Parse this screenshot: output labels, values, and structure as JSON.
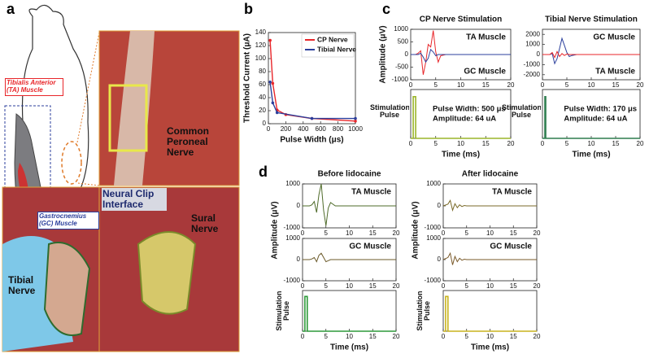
{
  "panel_labels": [
    "a",
    "b",
    "c",
    "d"
  ],
  "photo_labels": {
    "ta_muscle": "Tibialis Anterior (TA) Muscle",
    "gc_muscle": "Gastrocnemius (GC) Muscle",
    "common_peroneal": "Common Peroneal Nerve",
    "neural_clip": "Neural Clip Interface",
    "sural": "Sural Nerve",
    "tibial": "Tibial Nerve"
  },
  "chart_data": [
    {
      "type": "line",
      "xlabel": "Pulse Width (μs)",
      "ylabel": "Threshold Current (μA)",
      "xlim": [
        0,
        1000
      ],
      "xticks": [
        0,
        200,
        400,
        600,
        800,
        1000
      ],
      "ylim": [
        0,
        140
      ],
      "yticks": [
        0,
        20,
        40,
        60,
        80,
        100,
        120,
        140
      ],
      "legend": "upper right",
      "series": [
        {
          "name": "CP Nerve",
          "color": "#e8262a",
          "x": [
            20,
            50,
            100,
            200,
            500,
            1000
          ],
          "values": [
            128,
            62,
            21,
            14,
            8,
            4
          ]
        },
        {
          "name": "Tibial Nerve",
          "color": "#2b3f9c",
          "x": [
            20,
            50,
            100,
            500,
            1000
          ],
          "values": [
            64,
            32,
            17,
            8,
            8
          ]
        }
      ]
    },
    {
      "type": "line",
      "title": "CP Nerve Stimulation",
      "ylabel": "Amplitude (μV)",
      "xlim": [
        0,
        20
      ],
      "xticks": [
        0,
        5,
        10,
        15,
        20
      ],
      "ylim": [
        -1000,
        1000
      ],
      "yticks": [
        -1000,
        -500,
        0,
        500,
        1000
      ],
      "x": [
        0,
        1,
        1.5,
        2,
        2.5,
        3,
        3.5,
        4,
        4.5,
        5,
        5.5,
        6,
        7,
        8,
        10,
        12,
        15,
        20
      ],
      "series": [
        {
          "name": "TA Muscle",
          "color": "#e8262a",
          "values": [
            0,
            0,
            50,
            150,
            -800,
            -300,
            400,
            300,
            950,
            100,
            -300,
            -50,
            0,
            0,
            0,
            0,
            0,
            0
          ]
        },
        {
          "name": "GC Muscle",
          "color": "#2b3f9c",
          "values": [
            0,
            0,
            0,
            50,
            -100,
            -300,
            -150,
            200,
            100,
            -50,
            0,
            0,
            0,
            0,
            0,
            0,
            0,
            0
          ]
        }
      ]
    },
    {
      "type": "pulse",
      "ylabel": "Stimulation Pulse",
      "xlabel": "Time (ms)",
      "xlim": [
        0,
        20
      ],
      "xticks": [
        0,
        5,
        10,
        15,
        20
      ],
      "ylim": [
        0,
        75
      ],
      "color": "#9bb52a",
      "x": [
        0,
        0.5,
        0.5,
        1,
        1,
        20
      ],
      "values": [
        0,
        0,
        64,
        64,
        0,
        0
      ],
      "annotations": [
        {
          "text": "Pulse Width: 500 μs",
          "color": "#e8262a"
        },
        {
          "text": "Amplitude: 64 uA",
          "color": "#e8262a"
        }
      ]
    },
    {
      "type": "line",
      "title": "Tibial Nerve Stimulation",
      "xlim": [
        0,
        20
      ],
      "xticks": [
        0,
        5,
        10,
        15,
        20
      ],
      "ylim": [
        -2500,
        2500
      ],
      "yticks": [
        -2000,
        -1000,
        0,
        1000,
        2000
      ],
      "x": [
        0,
        1,
        1.5,
        2,
        2.5,
        3,
        3.5,
        4,
        4.5,
        5,
        5.5,
        6,
        7,
        8,
        10,
        12,
        15,
        20
      ],
      "series": [
        {
          "name": "GC Muscle",
          "color": "#2b3f9c",
          "values": [
            0,
            0,
            0,
            100,
            -900,
            -400,
            600,
            1600,
            900,
            200,
            -200,
            -100,
            0,
            0,
            0,
            0,
            0,
            0
          ]
        },
        {
          "name": "TA Muscle",
          "color": "#e8262a",
          "values": [
            0,
            0,
            0,
            200,
            -300,
            300,
            -200,
            100,
            -100,
            50,
            0,
            0,
            0,
            0,
            0,
            0,
            0,
            0
          ]
        }
      ]
    },
    {
      "type": "pulse",
      "ylabel": "Stimulation Pulse",
      "xlabel": "Time (ms)",
      "xlim": [
        0,
        20
      ],
      "xticks": [
        0,
        5,
        10,
        15,
        20
      ],
      "ylim": [
        0,
        75
      ],
      "color": "#2e7d4f",
      "x": [
        0,
        0.5,
        0.5,
        0.67,
        0.67,
        20
      ],
      "values": [
        0,
        0,
        64,
        64,
        0,
        0
      ],
      "annotations": [
        {
          "text": "Pulse Width: 170 μs",
          "color": "#2b3f9c"
        },
        {
          "text": "Amplitude: 64 uA",
          "color": "#2b3f9c"
        }
      ]
    },
    {
      "type": "line",
      "title": "Before lidocaine",
      "xlim": [
        0,
        20
      ],
      "xticks": [
        0,
        5,
        10,
        15,
        20
      ],
      "ylim": [
        -1000,
        1000
      ],
      "yticks": [
        -1000,
        0,
        1000
      ],
      "x": [
        0,
        1,
        1.5,
        2,
        2.5,
        3,
        3.5,
        4,
        4.5,
        5,
        5.5,
        6,
        7,
        8,
        10,
        12,
        15,
        20
      ],
      "series": [
        {
          "name": "TA Muscle",
          "color": "#4f6b2a",
          "label_color": "#e8262a",
          "values": [
            0,
            0,
            0,
            50,
            200,
            -300,
            500,
            1000,
            -200,
            -900,
            -100,
            150,
            0,
            0,
            0,
            0,
            0,
            0
          ]
        }
      ]
    },
    {
      "type": "line",
      "ylabel": "Amplitude (μV)",
      "xlim": [
        0,
        20
      ],
      "xticks": [
        0,
        5,
        10,
        15,
        20
      ],
      "ylim": [
        -1000,
        1000
      ],
      "yticks": [
        -1000,
        0,
        1000
      ],
      "x": [
        0,
        1,
        1.5,
        2,
        2.5,
        3,
        3.5,
        4,
        4.5,
        5,
        5.5,
        6,
        7,
        8,
        10,
        12,
        15,
        20
      ],
      "series": [
        {
          "name": "GC Muscle",
          "color": "#6b5a2a",
          "label_color": "#2b3f9c",
          "values": [
            0,
            0,
            0,
            30,
            100,
            -100,
            200,
            300,
            100,
            -100,
            -50,
            0,
            0,
            0,
            0,
            0,
            0,
            0
          ]
        }
      ]
    },
    {
      "type": "pulse",
      "ylabel": "Stimulation Pulse",
      "xlabel": "Time (ms)",
      "xlim": [
        0,
        20
      ],
      "xticks": [
        0,
        5,
        10,
        15,
        20
      ],
      "ylim": [
        0,
        75
      ],
      "color": "#2e9a3a",
      "x": [
        0,
        0.5,
        0.5,
        1,
        1,
        20
      ],
      "values": [
        0,
        0,
        64,
        64,
        0,
        0
      ]
    },
    {
      "type": "line",
      "title": "After lidocaine",
      "xlim": [
        0,
        20
      ],
      "xticks": [
        0,
        5,
        10,
        15,
        20
      ],
      "ylim": [
        -1000,
        1000
      ],
      "yticks": [
        -1000,
        0,
        1000
      ],
      "x": [
        0,
        1,
        1.5,
        2,
        2.5,
        3,
        3.5,
        4,
        4.5,
        5,
        5.5,
        6,
        7,
        8,
        10,
        12,
        15,
        20
      ],
      "series": [
        {
          "name": "TA Muscle",
          "color": "#7a6a2a",
          "label_color": "#e8262a",
          "values": [
            0,
            80,
            250,
            -200,
            100,
            -80,
            50,
            -30,
            20,
            0,
            0,
            0,
            0,
            0,
            0,
            0,
            0,
            0
          ]
        }
      ]
    },
    {
      "type": "line",
      "ylabel": "Amplitude (μV)",
      "xlim": [
        0,
        20
      ],
      "xticks": [
        0,
        5,
        10,
        15,
        20
      ],
      "ylim": [
        -1000,
        1000
      ],
      "yticks": [
        -1000,
        0,
        1000
      ],
      "x": [
        0,
        1,
        1.5,
        2,
        2.5,
        3,
        3.5,
        4,
        4.5,
        5,
        5.5,
        6,
        7,
        8,
        10,
        12,
        15,
        20
      ],
      "series": [
        {
          "name": "GC Muscle",
          "color": "#7a5a2a",
          "label_color": "#2b3f9c",
          "values": [
            0,
            100,
            300,
            -250,
            150,
            -100,
            60,
            -30,
            20,
            0,
            0,
            0,
            0,
            0,
            0,
            0,
            0,
            0
          ]
        }
      ]
    },
    {
      "type": "pulse",
      "ylabel": "Stimulation Pulse",
      "xlabel": "Time (ms)",
      "xlim": [
        0,
        20
      ],
      "xticks": [
        0,
        5,
        10,
        15,
        20
      ],
      "ylim": [
        0,
        75
      ],
      "color": "#c9b41e",
      "x": [
        0,
        0.5,
        0.5,
        1,
        1,
        20
      ],
      "values": [
        0,
        0,
        64,
        64,
        0,
        0
      ]
    }
  ]
}
